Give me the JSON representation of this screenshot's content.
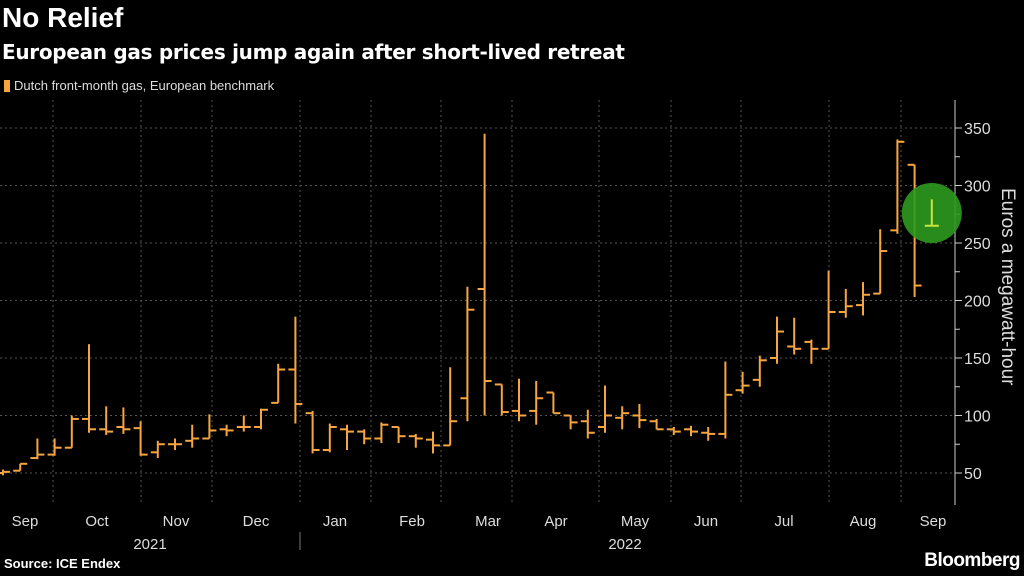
{
  "header": {
    "title": "No Relief",
    "subtitle": "European gas prices jump again after short-lived retreat"
  },
  "footer": {
    "source": "Source: ICE Endex",
    "logo": "Bloomberg"
  },
  "colors": {
    "series": "#f7a540",
    "highlight": "#c8e63c",
    "highlight_circle": "#2e9a1e"
  },
  "chart_data": {
    "type": "ohlc",
    "title": "No Relief",
    "legend": [
      {
        "name": "Dutch front-month gas, European benchmark",
        "position": "top-left"
      }
    ],
    "ylabel": "Euros a megawatt-hour",
    "ylim": [
      30,
      370
    ],
    "yticks": [
      50,
      100,
      150,
      200,
      250,
      300,
      350
    ],
    "grid": true,
    "x_month_labels": [
      "Sep",
      "Oct",
      "Nov",
      "Dec",
      "Jan",
      "Feb",
      "Mar",
      "Apr",
      "May",
      "Jun",
      "Jul",
      "Aug",
      "Sep"
    ],
    "x_year_labels": [
      "2021",
      "2022"
    ],
    "series": [
      {
        "name": "Dutch front-month gas, European benchmark",
        "ohlc": [
          [
            50,
            53,
            48,
            51
          ],
          [
            52,
            58,
            52,
            58
          ],
          [
            63,
            80,
            62,
            66
          ],
          [
            66,
            80,
            65,
            72
          ],
          [
            72,
            100,
            72,
            97
          ],
          [
            97,
            162,
            85,
            88
          ],
          [
            88,
            108,
            83,
            86
          ],
          [
            90,
            107,
            84,
            88
          ],
          [
            89,
            95,
            65,
            66
          ],
          [
            68,
            78,
            63,
            75
          ],
          [
            75,
            80,
            70,
            75
          ],
          [
            78,
            92,
            72,
            80
          ],
          [
            80,
            101,
            80,
            87
          ],
          [
            88,
            92,
            82,
            87
          ],
          [
            90,
            100,
            86,
            90
          ],
          [
            90,
            106,
            88,
            105
          ],
          [
            111,
            145,
            111,
            140
          ],
          [
            140,
            186,
            93,
            110
          ],
          [
            102,
            104,
            67,
            70
          ],
          [
            70,
            93,
            68,
            90
          ],
          [
            88,
            92,
            70,
            86
          ],
          [
            86,
            88,
            75,
            80
          ],
          [
            80,
            94,
            76,
            92
          ],
          [
            90,
            90,
            76,
            82
          ],
          [
            82,
            84,
            72,
            80
          ],
          [
            79,
            86,
            67,
            74
          ],
          [
            74,
            142,
            74,
            95
          ],
          [
            115,
            212,
            95,
            192
          ],
          [
            210,
            345,
            100,
            130
          ],
          [
            127,
            127,
            100,
            103
          ],
          [
            104,
            132,
            95,
            100
          ],
          [
            104,
            130,
            92,
            115
          ],
          [
            120,
            120,
            102,
            102
          ],
          [
            100,
            100,
            88,
            94
          ],
          [
            95,
            105,
            80,
            85
          ],
          [
            90,
            126,
            85,
            100
          ],
          [
            98,
            108,
            88,
            102
          ],
          [
            100,
            110,
            89,
            96
          ],
          [
            95,
            97,
            88,
            88
          ],
          [
            88,
            90,
            83,
            86
          ],
          [
            88,
            91,
            82,
            86
          ],
          [
            85,
            90,
            78,
            84
          ],
          [
            84,
            147,
            80,
            118
          ],
          [
            122,
            138,
            119,
            126
          ],
          [
            131,
            152,
            125,
            148
          ],
          [
            150,
            186,
            145,
            173
          ],
          [
            160,
            185,
            153,
            158
          ],
          [
            164,
            166,
            145,
            158
          ],
          [
            158,
            226,
            158,
            190
          ],
          [
            190,
            210,
            185,
            195
          ],
          [
            196,
            216,
            187,
            205
          ],
          [
            206,
            262,
            206,
            243
          ],
          [
            261,
            340,
            258,
            338
          ],
          [
            318,
            318,
            203,
            213
          ],
          [
            265,
            288,
            265,
            265
          ]
        ],
        "highlight_last": true
      }
    ]
  }
}
